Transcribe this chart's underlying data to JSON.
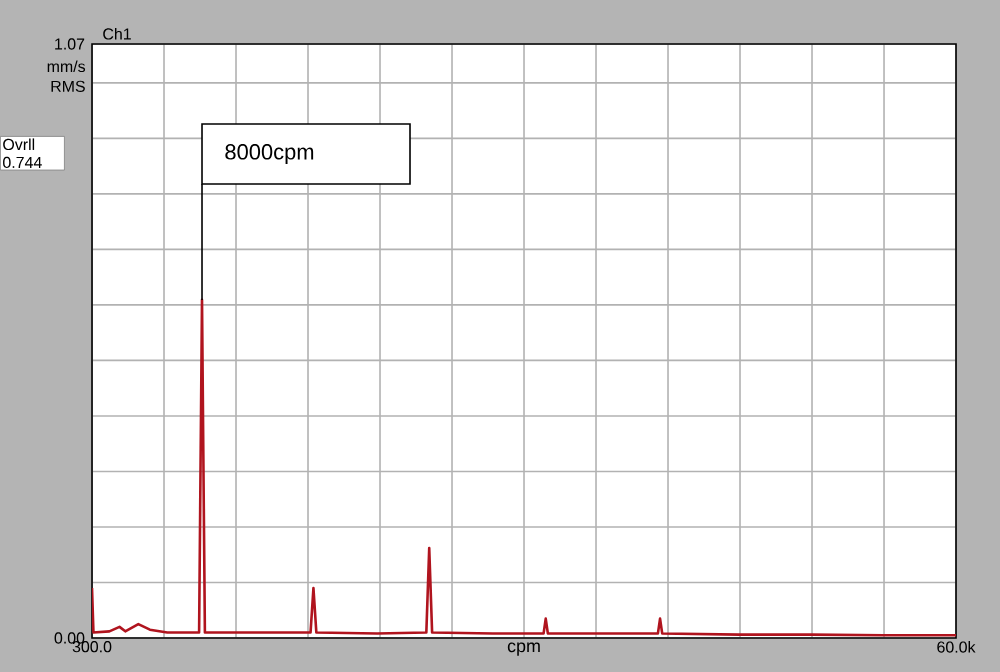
{
  "chart_data": {
    "type": "line",
    "title": "Ch1",
    "xlabel": "cpm",
    "ylabel": "mm/s RMS",
    "annotations": [
      "8000cpm",
      "Ovrll 0.744"
    ],
    "x": [
      300,
      400,
      1500,
      2200,
      2600,
      3500,
      4300,
      5500,
      7700,
      7900,
      8100,
      12000,
      15400,
      15600,
      15800,
      20000,
      23400,
      23600,
      23800,
      28000,
      31500,
      31650,
      31800,
      36000,
      39400,
      39550,
      39700,
      45000,
      50000,
      55000,
      60000
    ],
    "series": [
      {
        "color": "#b0141e",
        "values": [
          0.09,
          0.01,
          0.012,
          0.02,
          0.012,
          0.025,
          0.015,
          0.01,
          0.01,
          0.609,
          0.01,
          0.01,
          0.01,
          0.09,
          0.01,
          0.008,
          0.01,
          0.162,
          0.01,
          0.008,
          0.008,
          0.035,
          0.008,
          0.008,
          0.008,
          0.035,
          0.008,
          0.006,
          0.006,
          0.005,
          0.005
        ]
      }
    ],
    "xlim": [
      300,
      60000
    ],
    "xticks": [
      {
        "value": 300,
        "label": "300.0"
      },
      {
        "value": 5275,
        "label": null
      },
      {
        "value": 10250,
        "label": null
      },
      {
        "value": 15225,
        "label": null
      },
      {
        "value": 20200,
        "label": null
      },
      {
        "value": 25175,
        "label": null
      },
      {
        "value": 30150,
        "label": null
      },
      {
        "value": 35125,
        "label": null
      },
      {
        "value": 40100,
        "label": null
      },
      {
        "value": 45075,
        "label": null
      },
      {
        "value": 50050,
        "label": null
      },
      {
        "value": 55025,
        "label": null
      },
      {
        "value": 60000,
        "label": "60.0k"
      }
    ],
    "ylim": [
      0,
      1.07
    ],
    "yticks": [
      {
        "value": 0,
        "label": "0.00"
      },
      {
        "value": 0.1,
        "label": null
      },
      {
        "value": 0.2,
        "label": null
      },
      {
        "value": 0.3,
        "label": null
      },
      {
        "value": 0.4,
        "label": null
      },
      {
        "value": 0.5,
        "label": null
      },
      {
        "value": 0.6,
        "label": null
      },
      {
        "value": 0.7,
        "label": null
      },
      {
        "value": 0.8,
        "label": null
      },
      {
        "value": 0.9,
        "label": null
      },
      {
        "value": 1.0,
        "label": null
      },
      {
        "value": 1.07,
        "label": "1.07"
      }
    ],
    "grid": true,
    "marker": "none",
    "line_style": "solid"
  }
}
